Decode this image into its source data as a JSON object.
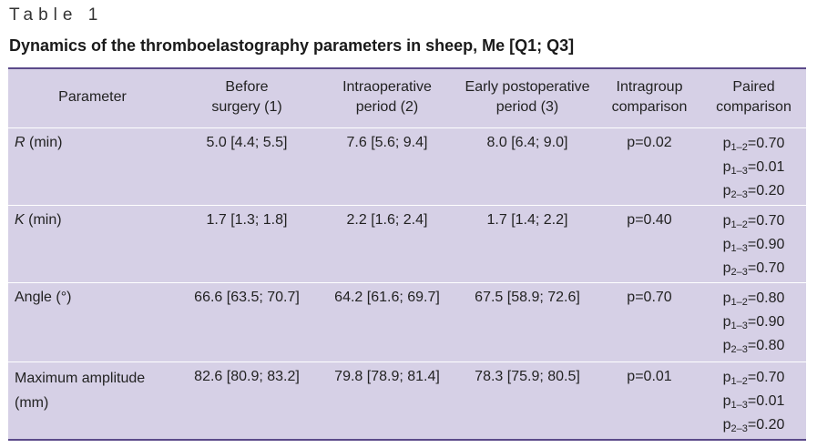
{
  "table_label": "Table 1",
  "caption": "Dynamics of the thromboelastography parameters in sheep, Me [Q1; Q3]",
  "headers": {
    "parameter": "Parameter",
    "before_l1": "Before",
    "before_l2": "surgery (1)",
    "intra_l1": "Intraoperative",
    "intra_l2": "period (2)",
    "early_l1": "Early postoperative",
    "early_l2": "period (3)",
    "intragroup_l1": "Intragroup",
    "intragroup_l2": "comparison",
    "paired_l1": "Paired",
    "paired_l2": "comparison"
  },
  "pair_labels": [
    "1–2",
    "1–3",
    "2–3"
  ],
  "rows": [
    {
      "param_symbol": "R",
      "param_unit": " (min)",
      "before": "5.0 [4.4; 5.5]",
      "intra": "7.6 [5.6; 9.4]",
      "early": "8.0 [6.4; 9.0]",
      "intragroup": "p=0.02",
      "paired": [
        "=0.70",
        "=0.01",
        "=0.20"
      ]
    },
    {
      "param_symbol": "K",
      "param_unit": " (min)",
      "before": "1.7 [1.3; 1.8]",
      "intra": "2.2 [1.6; 2.4]",
      "early": "1.7 [1.4; 2.2]",
      "intragroup": "p=0.40",
      "paired": [
        "=0.70",
        "=0.90",
        "=0.70"
      ]
    },
    {
      "param_text": "Angle (°)",
      "before": "66.6 [63.5; 70.7]",
      "intra": "64.2 [61.6; 69.7]",
      "early": "67.5 [58.9; 72.6]",
      "intragroup": "p=0.70",
      "paired": [
        "=0.80",
        "=0.90",
        "=0.80"
      ]
    },
    {
      "param_l1": "Maximum amplitude",
      "param_l2": "(mm)",
      "before": "82.6 [80.9; 83.2]",
      "intra": "79.8 [78.9; 81.4]",
      "early": "78.3 [75.9; 80.5]",
      "intragroup": "p=0.01",
      "paired": [
        "=0.70",
        "=0.01",
        "=0.20"
      ]
    }
  ],
  "colors": {
    "table_background": "#d6d0e6",
    "rule": "#5b4a8a",
    "row_separator": "#ffffff"
  }
}
